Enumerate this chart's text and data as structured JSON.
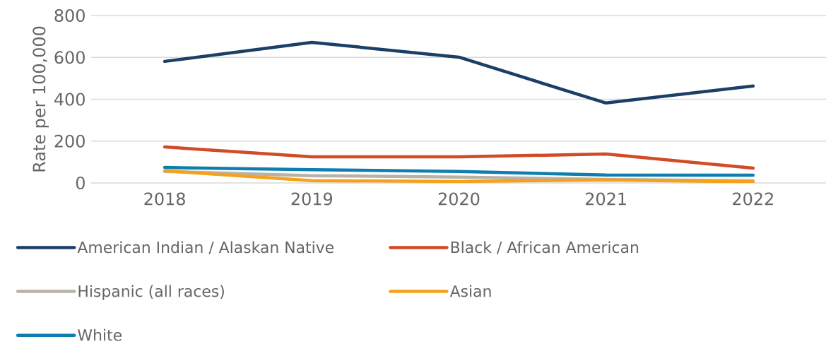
{
  "chart_data": {
    "type": "line",
    "ylabel": "Rate per 100,000",
    "categories": [
      "2018",
      "2019",
      "2020",
      "2021",
      "2022"
    ],
    "ylim": [
      0,
      800
    ],
    "yticks": [
      0,
      200,
      400,
      600,
      800
    ],
    "grid": "y",
    "legend": "bottom",
    "marker": "none",
    "line_style": "solid",
    "series": [
      {
        "name": "American Indian / Alaskan Native",
        "color": "#1b3f66",
        "values": [
          581,
          672,
          601,
          382,
          463
        ]
      },
      {
        "name": "Black / African American",
        "color": "#d24b27",
        "values": [
          172,
          125,
          125,
          138,
          71
        ]
      },
      {
        "name": "Hispanic (all races)",
        "color": "#b8b2a6",
        "values": [
          55,
          35,
          28,
          17,
          10
        ]
      },
      {
        "name": "Asian",
        "color": "#f5a11c",
        "values": [
          58,
          11,
          7,
          14,
          5
        ]
      },
      {
        "name": "White",
        "color": "#0f7eae",
        "values": [
          74,
          63,
          55,
          38,
          37
        ]
      }
    ]
  }
}
